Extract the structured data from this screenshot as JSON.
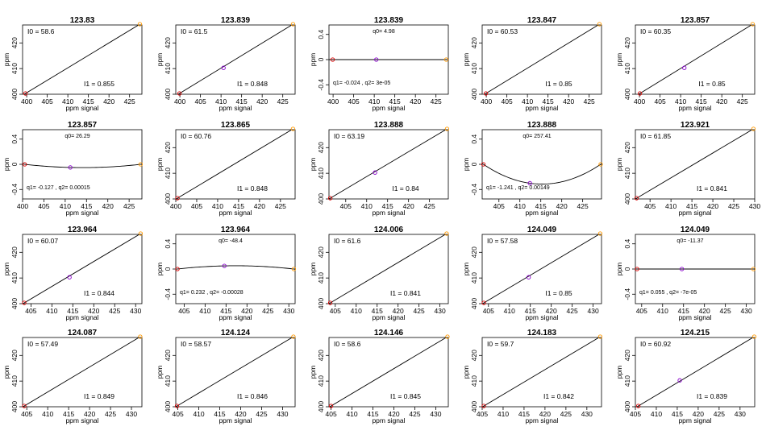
{
  "chart_data": {
    "type": "scatter",
    "xlabel": "ppm signal",
    "ylabel": "ppm",
    "colors": {
      "p1": "#dd0000",
      "p2": "#8800cc",
      "p3": "#ff9900",
      "line": "#000000"
    },
    "panels": [
      {
        "title": "123.83",
        "xlim": [
          399,
          428
        ],
        "xticks": [
          400,
          405,
          410,
          415,
          420,
          425
        ],
        "ylim": [
          400,
          427
        ],
        "yticks": [
          400,
          410,
          420
        ],
        "points": [
          [
            399.7,
            400.3
          ],
          [
            427.5,
            427.3
          ]
        ],
        "fit": "linear",
        "ann": [
          "I0 = 58.6",
          "I1 = 0.855"
        ]
      },
      {
        "title": "123.839",
        "xlim": [
          399,
          428
        ],
        "xticks": [
          400,
          405,
          410,
          415,
          420,
          425
        ],
        "ylim": [
          400,
          427
        ],
        "yticks": [
          400,
          410,
          420
        ],
        "points": [
          [
            399.9,
            400.3
          ],
          [
            410.6,
            410.3
          ],
          [
            427.5,
            427.3
          ]
        ],
        "fit": "linear",
        "ann": [
          "I0 = 61.5",
          "I1 = 0.848"
        ]
      },
      {
        "title": "123.839",
        "xlim": [
          399,
          428
        ],
        "xticks": [
          400,
          405,
          410,
          415,
          420,
          425
        ],
        "ylim": [
          -0.55,
          0.55
        ],
        "yticks": [
          -0.4,
          0.0,
          0.4
        ],
        "points": [
          [
            399.9,
            0.0
          ],
          [
            410.5,
            0.0
          ],
          [
            427.5,
            0.0
          ]
        ],
        "fit": "quad",
        "ann": [
          "q0= 4.98",
          "q1= -0.024 , q2= 3e-05"
        ]
      },
      {
        "title": "123.847",
        "xlim": [
          399,
          428
        ],
        "xticks": [
          400,
          405,
          410,
          415,
          420,
          425
        ],
        "ylim": [
          400,
          427
        ],
        "yticks": [
          400,
          410,
          420
        ],
        "points": [
          [
            399.9,
            400.3
          ],
          [
            427.5,
            427.3
          ]
        ],
        "fit": "linear",
        "ann": [
          "I0 = 60.53",
          "I1 = 0.85"
        ]
      },
      {
        "title": "123.857",
        "xlim": [
          399,
          428
        ],
        "xticks": [
          400,
          405,
          410,
          415,
          420,
          425
        ],
        "ylim": [
          400,
          427
        ],
        "yticks": [
          400,
          410,
          420
        ],
        "points": [
          [
            400.1,
            400.3
          ],
          [
            410.9,
            410.3
          ],
          [
            427.5,
            427.3
          ]
        ],
        "fit": "linear",
        "ann": [
          "I0 = 60.35",
          "I1 = 0.85"
        ]
      },
      {
        "title": "123.857",
        "xlim": [
          400,
          428
        ],
        "xticks": [
          400,
          405,
          410,
          415,
          420,
          425
        ],
        "ylim": [
          -0.55,
          0.55
        ],
        "yticks": [
          -0.4,
          0.0,
          0.4
        ],
        "points": [
          [
            400.5,
            0.0
          ],
          [
            411.2,
            -0.05
          ],
          [
            427.7,
            0.0
          ]
        ],
        "fit": "quad",
        "ann": [
          "q0= 26.29",
          "q1= -0.127 , q2= 0.00015"
        ]
      },
      {
        "title": "123.865",
        "xlim": [
          400,
          428.5
        ],
        "xticks": [
          400,
          405,
          410,
          415,
          420,
          425
        ],
        "ylim": [
          400,
          427
        ],
        "yticks": [
          400,
          410,
          420
        ],
        "points": [
          [
            400.4,
            400.3
          ],
          [
            428,
            427.3
          ]
        ],
        "fit": "linear",
        "ann": [
          "I0 = 60.76",
          "I1 = 0.848"
        ]
      },
      {
        "title": "123.888",
        "xlim": [
          401,
          429.5
        ],
        "xticks": [
          405,
          410,
          415,
          420,
          425
        ],
        "ylim": [
          400,
          427
        ],
        "yticks": [
          400,
          410,
          420
        ],
        "points": [
          [
            401.3,
            400.3
          ],
          [
            412,
            410.3
          ],
          [
            429.2,
            427.3
          ]
        ],
        "fit": "linear",
        "ann": [
          "I0 = 63.19",
          "I1 = 0.84"
        ]
      },
      {
        "title": "123.888",
        "xlim": [
          401,
          429.5
        ],
        "xticks": [
          405,
          410,
          415,
          420,
          425
        ],
        "ylim": [
          -0.55,
          0.55
        ],
        "yticks": [
          -0.4,
          0.0,
          0.4
        ],
        "points": [
          [
            401.3,
            0.0
          ],
          [
            412.4,
            -0.3
          ],
          [
            429.3,
            0.0
          ]
        ],
        "fit": "quad",
        "ann": [
          "q0= 257.41",
          "q1= -1.241 , q2= 0.00149"
        ]
      },
      {
        "title": "123.921",
        "xlim": [
          401.5,
          430
        ],
        "xticks": [
          405,
          410,
          415,
          420,
          425,
          430
        ],
        "ylim": [
          400,
          427
        ],
        "yticks": [
          400,
          410,
          420
        ],
        "points": [
          [
            401.8,
            400.3
          ],
          [
            429.7,
            427.3
          ]
        ],
        "fit": "linear",
        "ann": [
          "I0 = 61.85",
          "I1 = 0.841"
        ]
      },
      {
        "title": "123.964",
        "xlim": [
          403,
          431.5
        ],
        "xticks": [
          405,
          410,
          415,
          420,
          425,
          430
        ],
        "ylim": [
          400,
          427
        ],
        "yticks": [
          400,
          410,
          420
        ],
        "points": [
          [
            403.4,
            400.3
          ],
          [
            414.2,
            410.3
          ],
          [
            431.2,
            427.3
          ]
        ],
        "fit": "linear",
        "ann": [
          "I0 = 60.07",
          "I1 = 0.844"
        ]
      },
      {
        "title": "123.964",
        "xlim": [
          403,
          431.5
        ],
        "xticks": [
          405,
          410,
          415,
          420,
          425,
          430
        ],
        "ylim": [
          -0.55,
          0.55
        ],
        "yticks": [
          -0.4,
          0.0,
          0.4
        ],
        "points": [
          [
            403.4,
            0.0
          ],
          [
            414.6,
            0.05
          ],
          [
            431.2,
            0.0
          ]
        ],
        "fit": "quad",
        "ann": [
          "q0= -48.4",
          "q1= 0.232 , q2= -0.00028"
        ]
      },
      {
        "title": "124.006",
        "xlim": [
          403.5,
          432
        ],
        "xticks": [
          405,
          410,
          415,
          420,
          425,
          430
        ],
        "ylim": [
          400,
          427
        ],
        "yticks": [
          400,
          410,
          420
        ],
        "points": [
          [
            403.8,
            400.3
          ],
          [
            431.6,
            427.3
          ]
        ],
        "fit": "linear",
        "ann": [
          "I0 = 61.6",
          "I1 = 0.841"
        ]
      },
      {
        "title": "124.049",
        "xlim": [
          403.5,
          432
        ],
        "xticks": [
          405,
          410,
          415,
          420,
          425,
          430
        ],
        "ylim": [
          400,
          427
        ],
        "yticks": [
          400,
          410,
          420
        ],
        "points": [
          [
            403.9,
            400.3
          ],
          [
            414.6,
            410.3
          ],
          [
            431.7,
            427.3
          ]
        ],
        "fit": "linear",
        "ann": [
          "I0 = 57.58",
          "I1 = 0.85"
        ]
      },
      {
        "title": "124.049",
        "xlim": [
          403.5,
          432
        ],
        "xticks": [
          405,
          410,
          415,
          420,
          425,
          430
        ],
        "ylim": [
          -0.55,
          0.55
        ],
        "yticks": [
          -0.4,
          0.0,
          0.4
        ],
        "points": [
          [
            403.9,
            0.0
          ],
          [
            414.6,
            0.0
          ],
          [
            431.7,
            0.0
          ]
        ],
        "fit": "quad",
        "ann": [
          "q0= -11.37",
          "q1= 0.055 , q2= -7e-05"
        ]
      },
      {
        "title": "124.087",
        "xlim": [
          404,
          432.5
        ],
        "xticks": [
          405,
          410,
          415,
          420,
          425,
          430
        ],
        "ylim": [
          400,
          427
        ],
        "yticks": [
          400,
          410,
          420
        ],
        "points": [
          [
            404.4,
            400.3
          ],
          [
            432.1,
            427.3
          ]
        ],
        "fit": "linear",
        "ann": [
          "I0 = 57.49",
          "I1 = 0.849"
        ]
      },
      {
        "title": "124.124",
        "xlim": [
          404.5,
          433
        ],
        "xticks": [
          405,
          410,
          415,
          420,
          425,
          430
        ],
        "ylim": [
          400,
          427
        ],
        "yticks": [
          400,
          410,
          420
        ],
        "points": [
          [
            404.8,
            400.3
          ],
          [
            432.6,
            427.3
          ]
        ],
        "fit": "linear",
        "ann": [
          "I0 = 58.57",
          "I1 = 0.846"
        ]
      },
      {
        "title": "124.146",
        "xlim": [
          404.5,
          433
        ],
        "xticks": [
          405,
          410,
          415,
          420,
          425,
          430
        ],
        "ylim": [
          400,
          427
        ],
        "yticks": [
          400,
          410,
          420
        ],
        "points": [
          [
            405,
            400.3
          ],
          [
            432.8,
            427.3
          ]
        ],
        "fit": "linear",
        "ann": [
          "I0 = 58.6",
          "I1 = 0.845"
        ]
      },
      {
        "title": "124.183",
        "xlim": [
          405,
          433.5
        ],
        "xticks": [
          405,
          410,
          415,
          420,
          425,
          430
        ],
        "ylim": [
          400,
          427
        ],
        "yticks": [
          400,
          410,
          420
        ],
        "points": [
          [
            405.4,
            400.3
          ],
          [
            433.2,
            427.3
          ]
        ],
        "fit": "linear",
        "ann": [
          "I0 = 59.7",
          "I1 = 0.842"
        ]
      },
      {
        "title": "124.215",
        "xlim": [
          405,
          433.5
        ],
        "xticks": [
          405,
          410,
          415,
          420,
          425,
          430
        ],
        "ylim": [
          400,
          427
        ],
        "yticks": [
          400,
          410,
          420
        ],
        "points": [
          [
            405.7,
            400.3
          ],
          [
            415.6,
            410.3
          ],
          [
            433.4,
            427.3
          ]
        ],
        "fit": "linear",
        "ann": [
          "I0 = 60.92",
          "I1 = 0.839"
        ]
      }
    ]
  }
}
